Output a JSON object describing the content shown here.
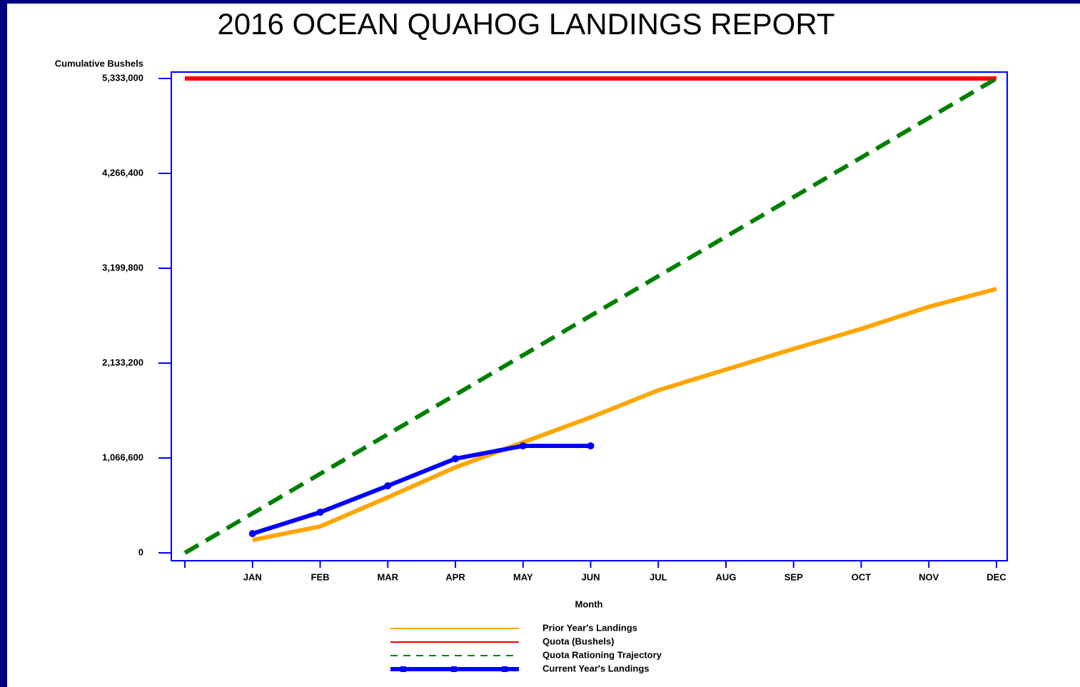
{
  "chart_data": {
    "type": "line",
    "title": "2016 OCEAN QUAHOG LANDINGS REPORT",
    "y_label": "Cumulative Bushels",
    "x_label": "Month",
    "categories": [
      null,
      "JAN",
      "FEB",
      "MAR",
      "APR",
      "MAY",
      "JUN",
      "JUL",
      "AUG",
      "SEP",
      "OCT",
      "NOV",
      "DEC"
    ],
    "ylim": [
      -88000,
      5405000
    ],
    "yticks": [
      {
        "value": 0,
        "label": "0"
      },
      {
        "value": 1066600,
        "label": "1,066,600"
      },
      {
        "value": 2133200,
        "label": "2,133,200"
      },
      {
        "value": 3199800,
        "label": "3,199,800"
      },
      {
        "value": 4266400,
        "label": "4,266,400"
      },
      {
        "value": 5333000,
        "label": "5,333,000"
      }
    ],
    "series": [
      {
        "name": "Prior Year's Landings",
        "color": "#ffa500",
        "dashed": false,
        "markers": false,
        "values": [
          null,
          145000,
          297000,
          625000,
          962000,
          1243000,
          1524000,
          1828000,
          2061000,
          2294000,
          2518000,
          2767000,
          2967000
        ]
      },
      {
        "name": "Quota (Bushels)",
        "color": "#ff0000",
        "dashed": false,
        "markers": false,
        "values": [
          5333000,
          5333000,
          5333000,
          5333000,
          5333000,
          5333000,
          5333000,
          5333000,
          5333000,
          5333000,
          5333000,
          5333000,
          5333000
        ]
      },
      {
        "name": "Quota Rationing Trajectory",
        "color": "#008000",
        "dashed": true,
        "markers": false,
        "values": [
          0,
          444417,
          888833,
          1333250,
          1777667,
          2222083,
          2666500,
          3110917,
          3555333,
          3999750,
          4444167,
          4888583,
          5333000
        ]
      },
      {
        "name": "Current Year's Landings",
        "color": "#0000ff",
        "dashed": false,
        "markers": true,
        "values": [
          null,
          217000,
          457000,
          754000,
          1059000,
          1203000,
          1203000,
          null,
          null,
          null,
          null,
          null,
          null
        ]
      }
    ]
  }
}
